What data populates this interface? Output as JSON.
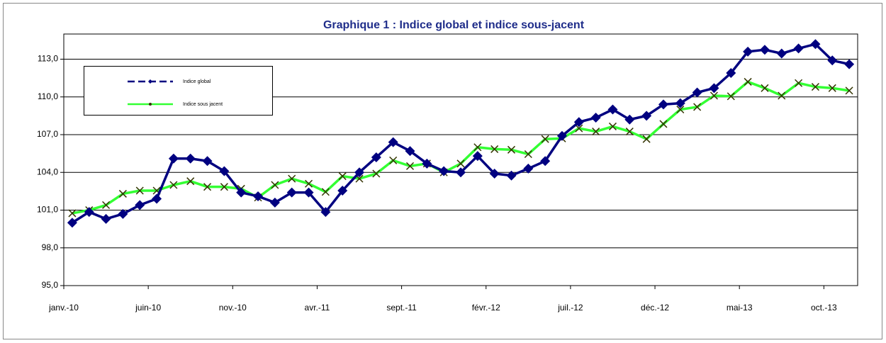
{
  "chart_data": {
    "type": "line",
    "title": "Graphique 1 : Indice global et indice sous-jacent",
    "categories": [
      "janv.-10",
      null,
      null,
      null,
      null,
      "juin-10",
      null,
      null,
      null,
      null,
      "nov.-10",
      null,
      null,
      null,
      null,
      "avr.-11",
      null,
      null,
      null,
      null,
      "sept.-11",
      null,
      null,
      null,
      null,
      "févr.-12",
      null,
      null,
      null,
      null,
      "juil.-12",
      null,
      null,
      null,
      null,
      "déc.-12",
      null,
      null,
      null,
      null,
      "mai-13",
      null,
      null,
      null,
      null,
      "oct.-13",
      null
    ],
    "series": [
      {
        "name": "Indice global",
        "color": "#000080",
        "marker": "diamond",
        "values": [
          100.0,
          100.85,
          100.3,
          100.7,
          101.4,
          101.9,
          105.1,
          105.1,
          104.9,
          104.1,
          102.4,
          102.1,
          101.6,
          102.4,
          102.4,
          100.85,
          102.55,
          104.0,
          105.2,
          106.4,
          105.7,
          104.7,
          104.1,
          104.0,
          105.3,
          103.9,
          103.75,
          104.3,
          104.9,
          106.9,
          108.0,
          108.35,
          109.0,
          108.2,
          108.5,
          109.4,
          109.5,
          110.35,
          110.7,
          111.9,
          113.6,
          113.75,
          113.45,
          113.85,
          114.2,
          112.9,
          112.6
        ]
      },
      {
        "name": "Indice sous jacent",
        "color": "#33ff33",
        "marker": "x",
        "values": [
          100.75,
          101.0,
          101.4,
          102.3,
          102.55,
          102.55,
          103.0,
          103.3,
          102.85,
          102.85,
          102.7,
          102.0,
          103.0,
          103.5,
          103.1,
          102.45,
          103.7,
          103.5,
          103.9,
          104.95,
          104.5,
          104.7,
          104.0,
          104.7,
          106.0,
          105.85,
          105.8,
          105.45,
          106.65,
          106.7,
          107.5,
          107.25,
          107.65,
          107.25,
          106.65,
          107.85,
          109.0,
          109.2,
          110.1,
          110.05,
          111.2,
          110.7,
          110.1,
          111.1,
          110.8,
          110.7,
          110.5
        ]
      }
    ],
    "ylim": [
      95,
      115
    ],
    "yticks": [
      {
        "value": 95,
        "label": "95,0"
      },
      {
        "value": 98,
        "label": "98,0"
      },
      {
        "value": 101,
        "label": "101,0"
      },
      {
        "value": 104,
        "label": "104,0"
      },
      {
        "value": 107,
        "label": "107,0"
      },
      {
        "value": 110,
        "label": "110,0"
      },
      {
        "value": 113,
        "label": "113,0"
      }
    ],
    "grid": true,
    "legend": "upper left"
  }
}
